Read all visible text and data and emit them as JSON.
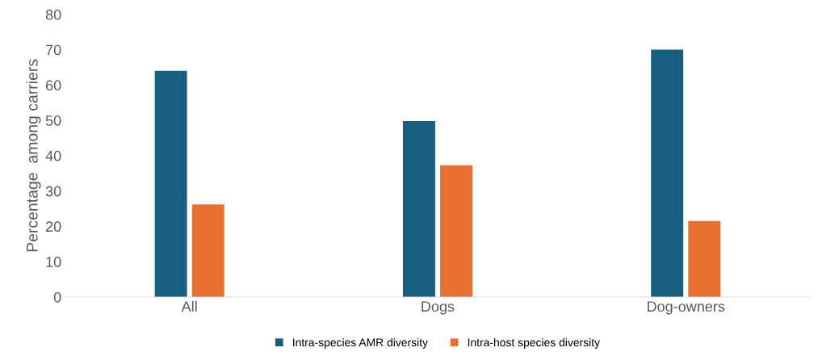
{
  "chart_data": {
    "type": "bar",
    "ylabel": "Percentage  among carriers",
    "categories": [
      "All",
      "Dogs",
      "Dog-owners"
    ],
    "series": [
      {
        "name": "Intra-species AMR diversity",
        "color": "#175e80",
        "values": [
          64,
          49.8,
          70
        ]
      },
      {
        "name": "Intra-host species diversity",
        "color": "#e87131",
        "values": [
          26.2,
          37.3,
          21.5
        ]
      }
    ],
    "ylim": [
      0,
      80
    ],
    "yticks": [
      0,
      10,
      20,
      30,
      40,
      50,
      60,
      70,
      80
    ],
    "grid": false,
    "legend": "bottom"
  }
}
